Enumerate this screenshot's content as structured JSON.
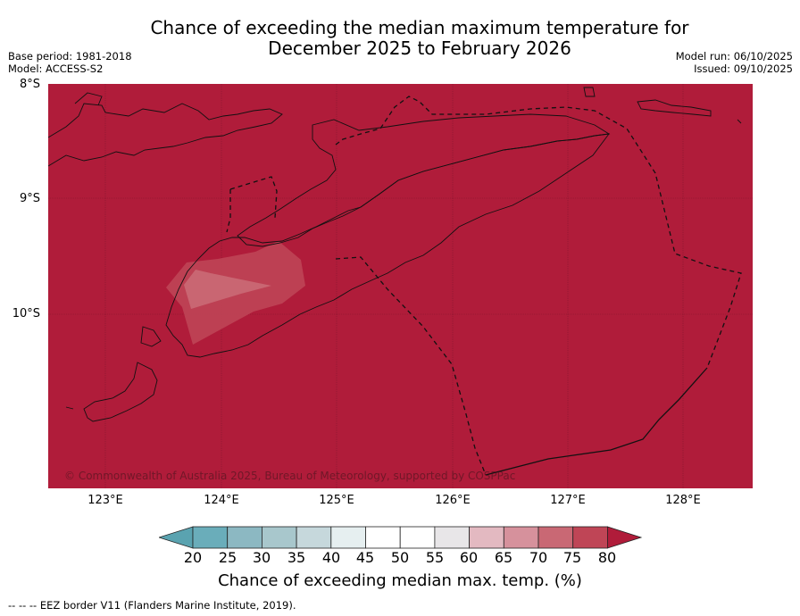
{
  "title_line1": "Chance of exceeding the median maximum temperature for",
  "title_line2": "December 2025 to February 2026",
  "meta_left": {
    "base_period": "Base period: 1981-2018",
    "model": "Model: ACCESS-S2"
  },
  "meta_right": {
    "model_run": "Model run: 06/10/2025",
    "issued": "Issued: 09/10/2025"
  },
  "map": {
    "lat_labels": [
      "8°S",
      "9°S",
      "10°S"
    ],
    "lon_labels": [
      "123°E",
      "124°E",
      "125°E",
      "126°E",
      "127°E",
      "128°E"
    ],
    "background_color": "#b01c3a",
    "copyright": "© Commonwealth of Australia 2025, Bureau of Meteorology, supported by COSPPac"
  },
  "colorbar": {
    "ticks": [
      "20",
      "25",
      "30",
      "35",
      "40",
      "45",
      "50",
      "55",
      "60",
      "65",
      "70",
      "75",
      "80"
    ],
    "colors": [
      "#5aa3b0",
      "#6aadba",
      "#8cb8c2",
      "#a8c7cc",
      "#c6d8dc",
      "#e6eff0",
      "#ffffff",
      "#ffffff",
      "#e8e6e8",
      "#e3b9c1",
      "#d6919c",
      "#c96874",
      "#bf4556",
      "#b01c3a"
    ],
    "label": "Chance of exceeding median max. temp. (%)"
  },
  "footer": "--  --  -- EEZ border V11 (Flanders Marine Institute, 2019)."
}
